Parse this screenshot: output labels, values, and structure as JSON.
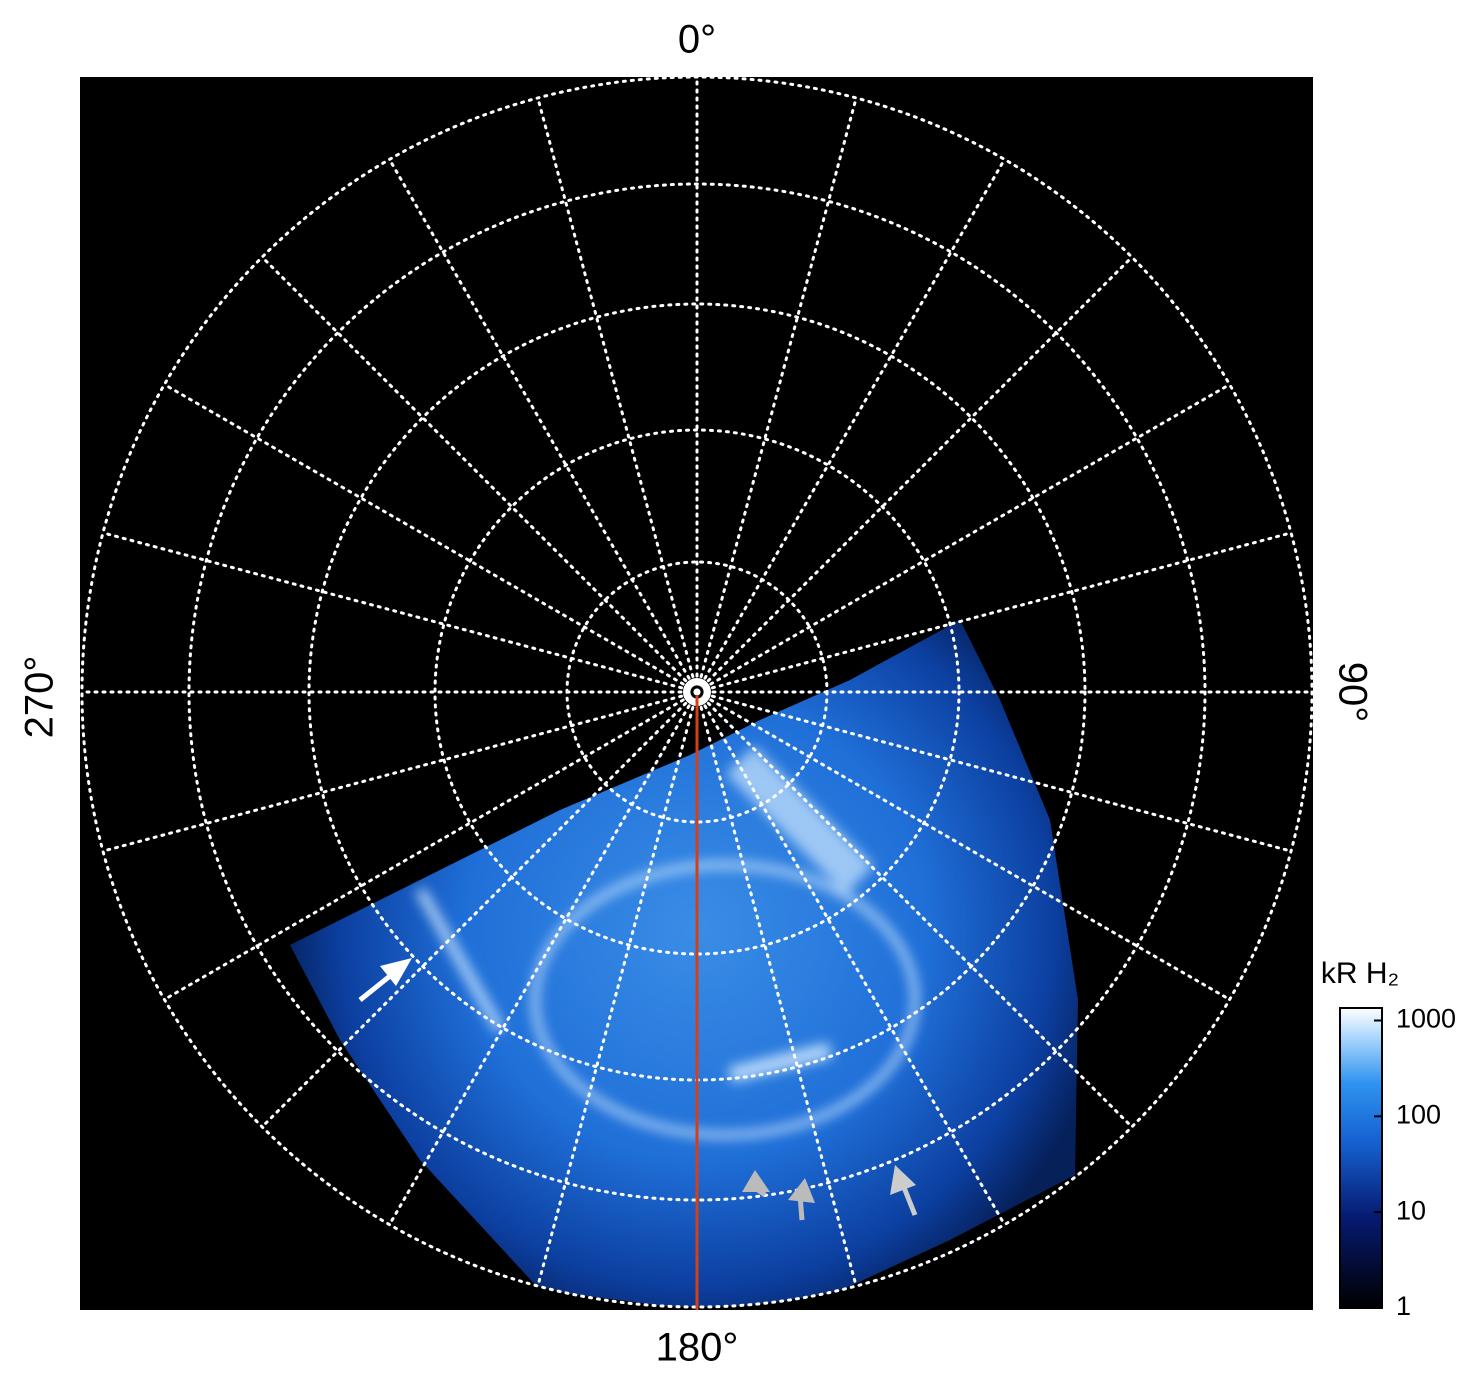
{
  "labels": {
    "top": "0°",
    "right": "90°",
    "bottom": "180°",
    "left": "270°"
  },
  "colorbar": {
    "label": "kR H₂",
    "scale": "log",
    "lim": [
      1,
      1350
    ],
    "ticks": [
      1,
      10,
      100,
      1000
    ]
  }
}
